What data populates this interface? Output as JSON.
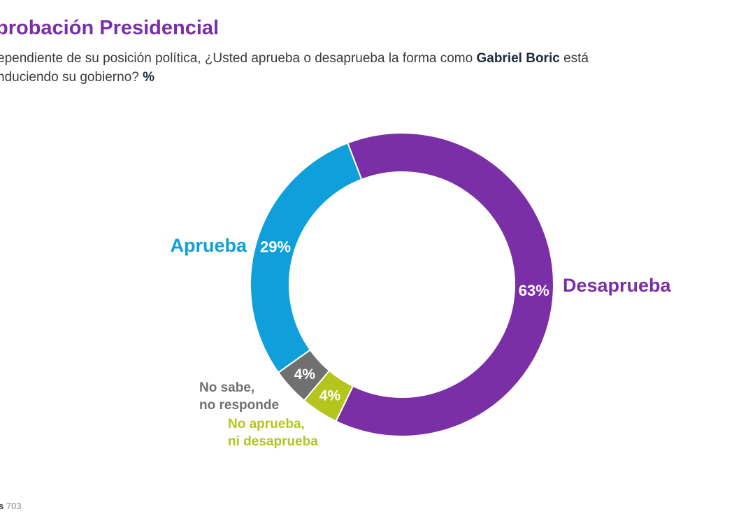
{
  "title_fragment": "probación Presidencial",
  "question": {
    "line1_before": "ependiente de su posición política, ¿Usted aprueba o desaprueba la forma como ",
    "name": "Gabriel Boric",
    "line1_after": " está",
    "line2": "nduciendo su gobierno? ",
    "unit": "%"
  },
  "footer": {
    "label_fragment": "s",
    "value": "703"
  },
  "colors": {
    "title": "#7b2fa6",
    "aprueba": "#0fa0dc",
    "desaprueba": "#7b2fa6",
    "no_sabe": "#707070",
    "ni": "#b4c61e"
  },
  "chart_data": {
    "type": "pie",
    "subtype": "donut",
    "unit": "%",
    "slices": [
      {
        "label": "Desaprueba",
        "value": 63,
        "value_label": "63%",
        "color": "#7b2fa6"
      },
      {
        "label": "No aprueba, ni desaprueba",
        "label_lines": [
          "No aprueba,",
          "ni desaprueba"
        ],
        "value": 4,
        "value_label": "4%",
        "color": "#b4c61e"
      },
      {
        "label": "No sabe, no responde",
        "label_lines": [
          "No sabe,",
          "no responde"
        ],
        "value": 4,
        "value_label": "4%",
        "color": "#707070"
      },
      {
        "label": "Aprueba",
        "value": 29,
        "value_label": "29%",
        "color": "#0fa0dc"
      }
    ]
  }
}
